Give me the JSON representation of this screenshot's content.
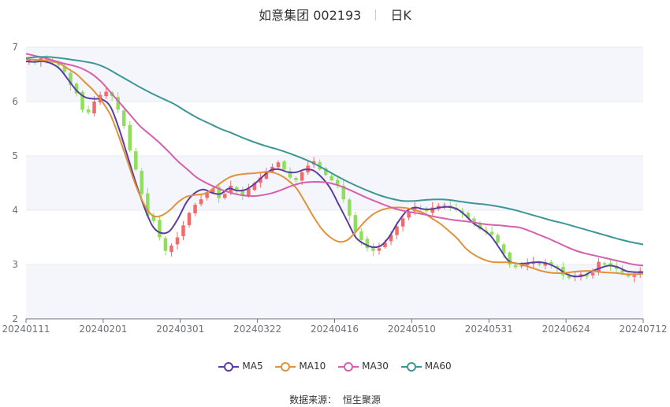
{
  "title": {
    "name": "如意集团 002193",
    "period": "日K"
  },
  "legend": [
    {
      "label": "MA5",
      "color": "#5b3d9e"
    },
    {
      "label": "MA10",
      "color": "#e0913a"
    },
    {
      "label": "MA30",
      "color": "#d65fae"
    },
    {
      "label": "MA60",
      "color": "#3d9695"
    }
  ],
  "source": {
    "label": "数据来源：",
    "value": "恒生聚源"
  },
  "colors": {
    "up": "#f46a6a",
    "down": "#8ee05a",
    "grid": "#e6e9f0",
    "band": "#f4f6fb",
    "axis": "#6e7079"
  },
  "chart_data": {
    "type": "candlestick",
    "title": "如意集团 002193 日K",
    "ylim": [
      2,
      7
    ],
    "yticks": [
      2,
      3,
      4,
      5,
      6,
      7
    ],
    "xticks": [
      "20240111",
      "20240201",
      "20240301",
      "20240322",
      "20240416",
      "20240510",
      "20240531",
      "20240624",
      "20240712"
    ],
    "closes": [
      6.76,
      6.73,
      6.8,
      6.74,
      6.72,
      6.67,
      6.55,
      6.3,
      6.15,
      5.85,
      5.8,
      6.0,
      6.12,
      6.18,
      6.1,
      5.85,
      5.55,
      5.1,
      4.75,
      4.3,
      3.9,
      3.8,
      3.5,
      3.25,
      3.35,
      3.5,
      3.72,
      3.95,
      4.1,
      4.2,
      4.32,
      4.4,
      4.22,
      4.3,
      4.45,
      4.35,
      4.28,
      4.4,
      4.5,
      4.6,
      4.72,
      4.8,
      4.88,
      4.75,
      4.6,
      4.55,
      4.7,
      4.82,
      4.9,
      4.75,
      4.65,
      4.55,
      4.45,
      4.2,
      3.9,
      3.6,
      3.45,
      3.3,
      3.25,
      3.3,
      3.4,
      3.55,
      3.7,
      3.85,
      3.98,
      4.05,
      4.02,
      3.98,
      4.05,
      4.08,
      4.1,
      4.05,
      4.0,
      3.95,
      3.85,
      3.75,
      3.65,
      3.6,
      3.55,
      3.4,
      3.2,
      3.0,
      2.95,
      2.98,
      3.02,
      3.05,
      3.0,
      3.02,
      2.98,
      2.95,
      2.8,
      2.75,
      2.78,
      2.82,
      2.78,
      2.85,
      3.05,
      3.0,
      2.98,
      2.92,
      2.85,
      2.78,
      2.8,
      2.88
    ],
    "series": [
      {
        "name": "MA5",
        "values": [
          6.74,
          6.73,
          6.74,
          6.7,
          6.6,
          6.4,
          6.2,
          6.08,
          6.05,
          6.04,
          5.9,
          5.5,
          5.0,
          4.5,
          4.05,
          3.7,
          3.58,
          3.62,
          3.85,
          4.15,
          4.32,
          4.38,
          4.32,
          4.3,
          4.4,
          4.36,
          4.38,
          4.48,
          4.62,
          4.74,
          4.75,
          4.7,
          4.7,
          4.75,
          4.73,
          4.6,
          4.4,
          4.1,
          3.8,
          3.5,
          3.38,
          3.32,
          3.35,
          3.52,
          3.78,
          3.98,
          4.05,
          4.02,
          4.02,
          4.05,
          4.06,
          4.02,
          3.9,
          3.75,
          3.65,
          3.52,
          3.3,
          3.08,
          3.02,
          3.02,
          3.04,
          3.04,
          3.0,
          2.92,
          2.82,
          2.78,
          2.8,
          2.88,
          2.94,
          2.98,
          2.95,
          2.88,
          2.86,
          2.86
        ]
      },
      {
        "name": "MA10",
        "values": [
          6.78,
          6.77,
          6.76,
          6.74,
          6.7,
          6.6,
          6.5,
          6.35,
          6.2,
          6.0,
          5.75,
          5.35,
          4.9,
          4.45,
          4.1,
          3.9,
          3.9,
          4.0,
          4.15,
          4.25,
          4.28,
          4.3,
          4.38,
          4.5,
          4.6,
          4.65,
          4.67,
          4.68,
          4.7,
          4.7,
          4.65,
          4.55,
          4.4,
          4.15,
          3.88,
          3.65,
          3.5,
          3.42,
          3.45,
          3.6,
          3.78,
          3.92,
          4.0,
          4.04,
          4.05,
          4.04,
          4.0,
          3.95,
          3.85,
          3.75,
          3.62,
          3.48,
          3.3,
          3.18,
          3.1,
          3.05,
          3.04,
          3.04,
          3.02,
          2.98,
          2.93,
          2.88,
          2.85,
          2.84,
          2.85,
          2.87,
          2.88,
          2.88,
          2.86,
          2.85,
          2.84,
          2.82,
          2.82,
          2.83
        ]
      },
      {
        "name": "MA30",
        "values": [
          6.88,
          6.84,
          6.8,
          6.75,
          6.7,
          6.66,
          6.6,
          6.5,
          6.35,
          6.15,
          5.95,
          5.75,
          5.55,
          5.4,
          5.25,
          5.08,
          4.9,
          4.75,
          4.6,
          4.5,
          4.42,
          4.35,
          4.3,
          4.27,
          4.26,
          4.28,
          4.32,
          4.38,
          4.45,
          4.5,
          4.52,
          4.52,
          4.5,
          4.45,
          4.38,
          4.3,
          4.22,
          4.15,
          4.08,
          4.02,
          3.98,
          3.95,
          3.92,
          3.88,
          3.85,
          3.82,
          3.8,
          3.78,
          3.75,
          3.73,
          3.72,
          3.7,
          3.68,
          3.62,
          3.55,
          3.48,
          3.4,
          3.32,
          3.25,
          3.2,
          3.16,
          3.12,
          3.08,
          3.04,
          3.0,
          2.98
        ]
      },
      {
        "name": "MA60",
        "values": [
          6.8,
          6.82,
          6.82,
          6.8,
          6.77,
          6.74,
          6.7,
          6.62,
          6.5,
          6.38,
          6.26,
          6.15,
          6.05,
          5.95,
          5.82,
          5.7,
          5.6,
          5.5,
          5.42,
          5.33,
          5.25,
          5.18,
          5.12,
          5.05,
          4.97,
          4.88,
          4.77,
          4.65,
          4.54,
          4.44,
          4.35,
          4.27,
          4.21,
          4.17,
          4.17,
          4.19,
          4.2,
          4.19,
          4.16,
          4.13,
          4.11,
          4.08,
          4.04,
          3.99,
          3.93,
          3.87,
          3.81,
          3.76,
          3.7,
          3.64,
          3.58,
          3.52,
          3.46,
          3.41,
          3.37
        ]
      }
    ]
  }
}
